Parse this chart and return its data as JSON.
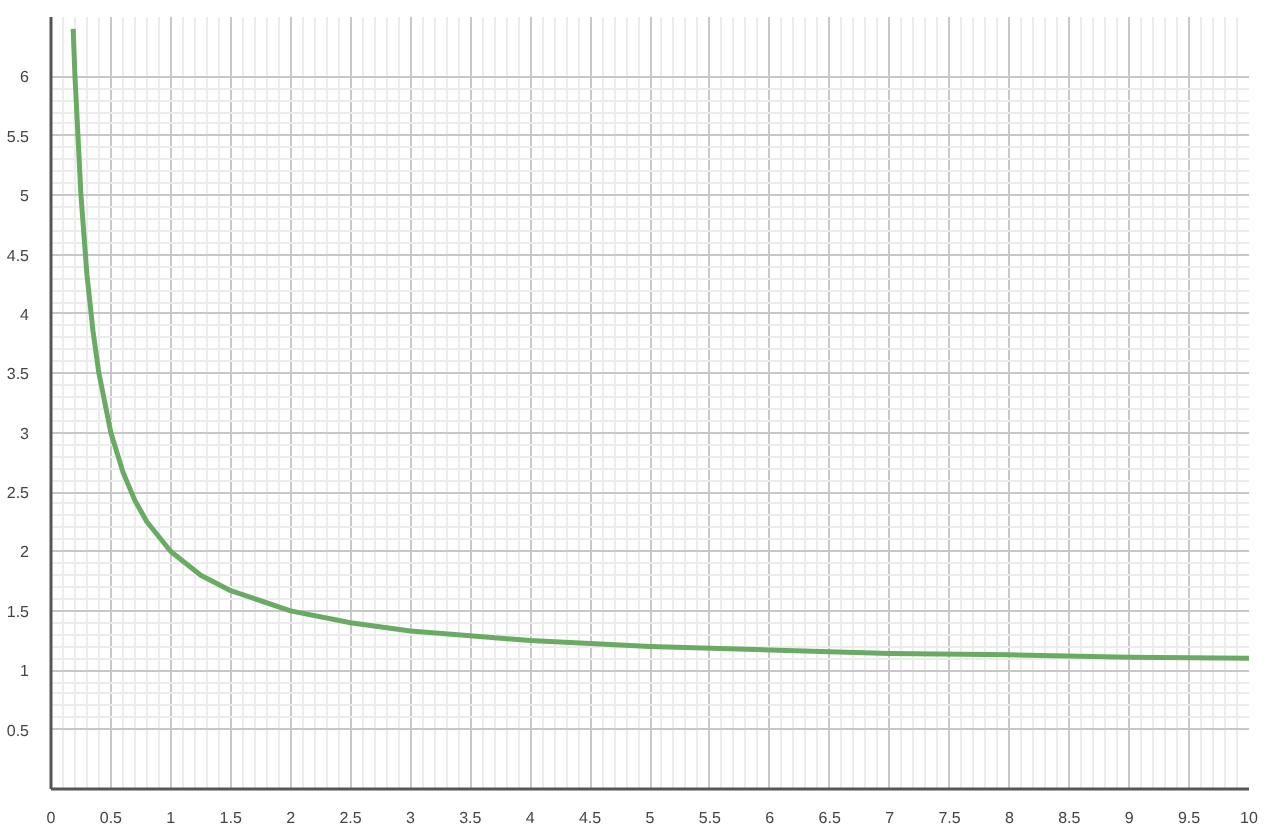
{
  "chart_data": {
    "type": "line",
    "x": [
      0.185,
      0.2,
      0.25,
      0.3,
      0.35,
      0.4,
      0.5,
      0.6,
      0.7,
      0.8,
      1,
      1.25,
      1.5,
      2,
      2.5,
      3,
      3.5,
      4,
      5,
      6,
      7,
      8,
      9,
      10
    ],
    "series": [
      {
        "color": "#6aab64",
        "values": [
          6.4,
          6,
          5,
          4.33,
          3.86,
          3.5,
          3,
          2.67,
          2.43,
          2.25,
          2,
          1.8,
          1.67,
          1.5,
          1.4,
          1.33,
          1.29,
          1.25,
          1.2,
          1.17,
          1.14,
          1.13,
          1.11,
          1.1
        ]
      }
    ],
    "xlim": [
      0,
      10
    ],
    "ylim": [
      0,
      6.5
    ],
    "xticks": [
      0,
      0.5,
      1,
      1.5,
      2,
      2.5,
      3,
      3.5,
      4,
      4.5,
      5,
      5.5,
      6,
      6.5,
      7,
      7.5,
      8,
      8.5,
      9,
      9.5,
      10
    ],
    "yticks": [
      0.5,
      1,
      1.5,
      2,
      2.5,
      3,
      3.5,
      4,
      4.5,
      5,
      5.5,
      6
    ],
    "grid": true,
    "marker": "none",
    "line_style": "solid"
  }
}
